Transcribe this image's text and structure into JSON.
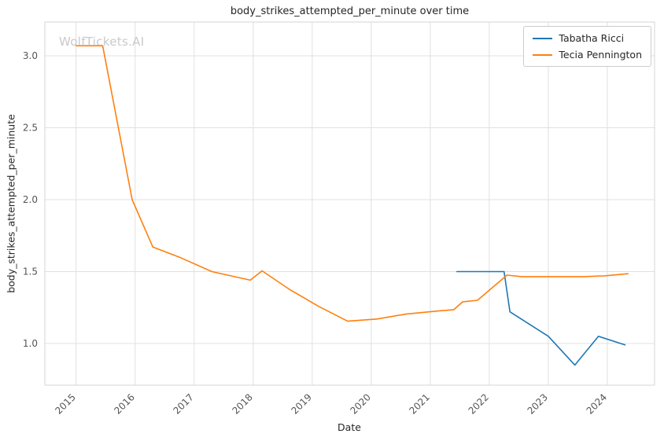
{
  "watermark": "WolfTickets.AI",
  "chart_data": {
    "type": "line",
    "title": "body_strikes_attempted_per_minute over time",
    "xlabel": "Date",
    "ylabel": "body_strikes_attempted_per_minute",
    "xlim": [
      2014.47,
      2024.8
    ],
    "ylim": [
      0.71,
      3.235
    ],
    "x_ticks": [
      2015,
      2016,
      2017,
      2018,
      2019,
      2020,
      2021,
      2022,
      2023,
      2024
    ],
    "y_ticks": [
      1.0,
      1.5,
      2.0,
      2.5,
      3.0
    ],
    "grid": true,
    "grid_color": "#e0e0e0",
    "border_color": "#d4d4d4",
    "tick_color": "#555555",
    "background_color": "#ffffff",
    "legend_position": "upper right",
    "series": [
      {
        "name": "Tabatha Ricci",
        "color": "#1f77b4",
        "x": [
          2021.45,
          2022.25,
          2022.35,
          2023.0,
          2023.45,
          2023.85,
          2024.3
        ],
        "y": [
          1.5,
          1.5,
          1.22,
          1.05,
          0.85,
          1.05,
          0.99
        ]
      },
      {
        "name": "Tecia Pennington",
        "color": "#ff7f0e",
        "x": [
          2015.0,
          2015.45,
          2015.95,
          2016.3,
          2016.75,
          2017.3,
          2017.95,
          2018.15,
          2018.6,
          2019.1,
          2019.6,
          2020.1,
          2020.6,
          2021.1,
          2021.4,
          2021.55,
          2021.8,
          2022.3,
          2022.55,
          2023.1,
          2023.6,
          2023.95,
          2024.35
        ],
        "y": [
          3.07,
          3.07,
          2.0,
          1.67,
          1.6,
          1.5,
          1.44,
          1.505,
          1.38,
          1.26,
          1.155,
          1.17,
          1.205,
          1.225,
          1.235,
          1.29,
          1.3,
          1.475,
          1.465,
          1.465,
          1.465,
          1.47,
          1.485
        ]
      }
    ]
  }
}
